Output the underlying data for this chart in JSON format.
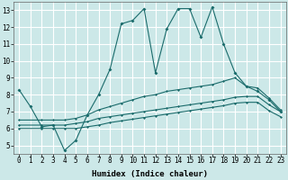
{
  "xlabel": "Humidex (Indice chaleur)",
  "background_color": "#cce8e8",
  "grid_color": "#ffffff",
  "line_color": "#1a6b6b",
  "xlim": [
    -0.5,
    23.5
  ],
  "ylim": [
    4.5,
    13.5
  ],
  "yticks": [
    5,
    6,
    7,
    8,
    9,
    10,
    11,
    12,
    13
  ],
  "xticks": [
    0,
    1,
    2,
    3,
    4,
    5,
    6,
    7,
    8,
    9,
    10,
    11,
    12,
    13,
    14,
    15,
    16,
    17,
    18,
    19,
    20,
    21,
    22,
    23
  ],
  "line1_x": [
    0,
    1,
    2,
    3,
    4,
    5,
    6,
    7,
    8,
    9,
    10,
    11,
    12,
    13,
    14,
    15,
    16,
    17,
    18,
    19,
    20,
    21,
    22,
    23
  ],
  "line1_y": [
    8.3,
    7.3,
    6.1,
    6.2,
    4.7,
    5.3,
    6.8,
    8.0,
    9.5,
    12.2,
    12.4,
    13.1,
    9.3,
    11.9,
    13.1,
    13.1,
    11.4,
    13.2,
    11.0,
    9.3,
    8.5,
    8.2,
    7.7,
    7.0
  ],
  "line2_x": [
    0,
    2,
    3,
    4,
    5,
    6,
    7,
    8,
    9,
    10,
    11,
    12,
    13,
    14,
    15,
    16,
    17,
    18,
    19,
    20,
    21,
    22,
    23
  ],
  "line2_y": [
    6.5,
    6.5,
    6.5,
    6.5,
    6.6,
    6.8,
    7.1,
    7.3,
    7.5,
    7.7,
    7.9,
    8.0,
    8.2,
    8.3,
    8.4,
    8.5,
    8.6,
    8.8,
    9.0,
    8.5,
    8.4,
    7.8,
    7.1
  ],
  "line3_x": [
    0,
    2,
    3,
    4,
    5,
    6,
    7,
    8,
    9,
    10,
    11,
    12,
    13,
    14,
    15,
    16,
    17,
    18,
    19,
    20,
    21,
    22,
    23
  ],
  "line3_y": [
    6.2,
    6.2,
    6.2,
    6.2,
    6.3,
    6.4,
    6.6,
    6.7,
    6.8,
    6.9,
    7.0,
    7.1,
    7.2,
    7.3,
    7.4,
    7.5,
    7.6,
    7.7,
    7.85,
    7.9,
    7.9,
    7.4,
    7.0
  ],
  "line4_x": [
    0,
    2,
    3,
    4,
    5,
    6,
    7,
    8,
    9,
    10,
    11,
    12,
    13,
    14,
    15,
    16,
    17,
    18,
    19,
    20,
    21,
    22,
    23
  ],
  "line4_y": [
    6.0,
    6.0,
    6.0,
    6.0,
    6.0,
    6.1,
    6.2,
    6.35,
    6.45,
    6.55,
    6.65,
    6.75,
    6.85,
    6.95,
    7.05,
    7.15,
    7.25,
    7.35,
    7.5,
    7.55,
    7.55,
    7.05,
    6.7
  ],
  "axis_fontsize": 6.5,
  "tick_fontsize": 5.5
}
